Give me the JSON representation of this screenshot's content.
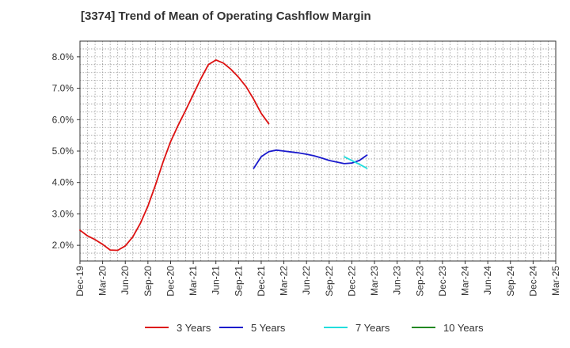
{
  "title": "[3374]  Trend of Mean of Operating Cashflow Margin",
  "chart_data": {
    "type": "line",
    "title": "[3374]  Trend of Mean of Operating Cashflow Margin",
    "xlabel": "",
    "ylabel": "",
    "x_tick_labels": [
      "Dec-19",
      "Mar-20",
      "Jun-20",
      "Sep-20",
      "Dec-20",
      "Mar-21",
      "Jun-21",
      "Sep-21",
      "Dec-21",
      "Mar-22",
      "Jun-22",
      "Sep-22",
      "Dec-22",
      "Mar-23",
      "Jun-23",
      "Sep-23",
      "Dec-23",
      "Mar-24",
      "Jun-24",
      "Sep-24",
      "Dec-24",
      "Mar-25"
    ],
    "y_tick_labels": [
      "2.0%",
      "3.0%",
      "4.0%",
      "5.0%",
      "6.0%",
      "7.0%",
      "8.0%"
    ],
    "y_ticks": [
      2.0,
      3.0,
      4.0,
      5.0,
      6.0,
      7.0,
      8.0
    ],
    "ylim": [
      1.5,
      8.5
    ],
    "grid": true,
    "legend_position": "bottom",
    "series": [
      {
        "name": "3 Years",
        "color": "#dd1111",
        "values": [
          2.48,
          2.3,
          2.18,
          2.03,
          1.85,
          1.84,
          1.98,
          2.27,
          2.7,
          3.25,
          3.92,
          4.65,
          5.3,
          5.82,
          6.3,
          6.8,
          7.3,
          7.75,
          7.9,
          7.8,
          7.6,
          7.35,
          7.05,
          6.65,
          6.2,
          5.87
        ]
      },
      {
        "name": "5 Years",
        "color": "#1a1acc",
        "values": [
          null,
          null,
          null,
          null,
          null,
          null,
          null,
          null,
          null,
          null,
          null,
          null,
          null,
          null,
          null,
          null,
          null,
          null,
          null,
          null,
          null,
          null,
          null,
          4.45,
          4.82,
          4.98,
          5.03,
          5.0,
          4.97,
          4.94,
          4.9,
          4.85,
          4.78,
          4.7,
          4.65,
          4.6,
          4.62,
          4.7,
          4.87
        ]
      },
      {
        "name": "7 Years",
        "color": "#22dddd",
        "values": [
          null,
          null,
          null,
          null,
          null,
          null,
          null,
          null,
          null,
          null,
          null,
          null,
          null,
          null,
          null,
          null,
          null,
          null,
          null,
          null,
          null,
          null,
          null,
          null,
          null,
          null,
          null,
          null,
          null,
          null,
          null,
          null,
          null,
          null,
          null,
          4.82,
          4.7,
          4.58,
          4.45
        ]
      },
      {
        "name": "10 Years",
        "color": "#228822",
        "values": []
      }
    ]
  }
}
